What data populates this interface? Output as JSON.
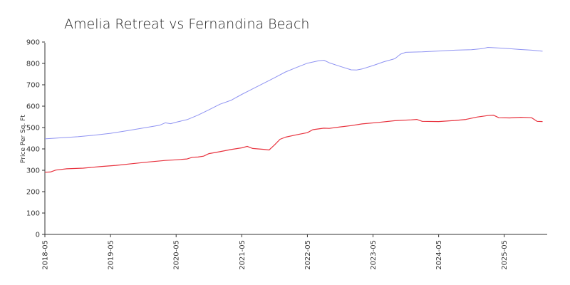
{
  "chart_data": {
    "type": "line",
    "title": "Amelia Retreat vs Fernandina Beach",
    "xlabel": "",
    "ylabel": "Price Per Sq. Ft",
    "ylim": [
      0,
      900
    ],
    "xlim": [
      "2018-05",
      "2025-12"
    ],
    "yticks": [
      "0",
      "100",
      "200",
      "300",
      "400",
      "500",
      "600",
      "700",
      "800",
      "900"
    ],
    "xticks": [
      "2018-05",
      "2019-05",
      "2020-05",
      "2021-05",
      "2022-05",
      "2023-05",
      "2024-05",
      "2025-05"
    ],
    "grid": false,
    "legend": "none",
    "series": [
      {
        "color": "#8f93f2",
        "points": [
          [
            "2018-05",
            447
          ],
          [
            "2018-08",
            452
          ],
          [
            "2018-11",
            457
          ],
          [
            "2019-02",
            464
          ],
          [
            "2019-05",
            473
          ],
          [
            "2019-08",
            485
          ],
          [
            "2019-11",
            498
          ],
          [
            "2020-02",
            511
          ],
          [
            "2020-03",
            522
          ],
          [
            "2020-04",
            518
          ],
          [
            "2020-05",
            525
          ],
          [
            "2020-07",
            537
          ],
          [
            "2020-09",
            558
          ],
          [
            "2020-11",
            583
          ],
          [
            "2021-01",
            609
          ],
          [
            "2021-03",
            627
          ],
          [
            "2021-05",
            655
          ],
          [
            "2021-08",
            694
          ],
          [
            "2021-11",
            733
          ],
          [
            "2022-01",
            760
          ],
          [
            "2022-03",
            781
          ],
          [
            "2022-05",
            801
          ],
          [
            "2022-07",
            812
          ],
          [
            "2022-08",
            815
          ],
          [
            "2022-09",
            803
          ],
          [
            "2022-11",
            786
          ],
          [
            "2023-01",
            770
          ],
          [
            "2023-02",
            769
          ],
          [
            "2023-03",
            774
          ],
          [
            "2023-05",
            790
          ],
          [
            "2023-07",
            808
          ],
          [
            "2023-09",
            822
          ],
          [
            "2023-10",
            843
          ],
          [
            "2023-11",
            852
          ],
          [
            "2024-02",
            854
          ],
          [
            "2024-05",
            858
          ],
          [
            "2024-08",
            862
          ],
          [
            "2024-11",
            864
          ],
          [
            "2025-01",
            869
          ],
          [
            "2025-02",
            875
          ],
          [
            "2025-05",
            871
          ],
          [
            "2025-08",
            865
          ],
          [
            "2025-10",
            862
          ],
          [
            "2025-12",
            857
          ]
        ]
      },
      {
        "color": "#e8333f",
        "points": [
          [
            "2018-05",
            291
          ],
          [
            "2018-06",
            292
          ],
          [
            "2018-07",
            301
          ],
          [
            "2018-09",
            307
          ],
          [
            "2018-12",
            310
          ],
          [
            "2019-03",
            317
          ],
          [
            "2019-06",
            323
          ],
          [
            "2019-09",
            331
          ],
          [
            "2019-12",
            339
          ],
          [
            "2020-03",
            346
          ],
          [
            "2020-05",
            349
          ],
          [
            "2020-07",
            353
          ],
          [
            "2020-08",
            361
          ],
          [
            "2020-09",
            362
          ],
          [
            "2020-10",
            366
          ],
          [
            "2020-11",
            378
          ],
          [
            "2021-01",
            387
          ],
          [
            "2021-03",
            397
          ],
          [
            "2021-05",
            405
          ],
          [
            "2021-06",
            412
          ],
          [
            "2021-07",
            402
          ],
          [
            "2021-09",
            398
          ],
          [
            "2021-10",
            395
          ],
          [
            "2021-11",
            419
          ],
          [
            "2021-12",
            445
          ],
          [
            "2022-01",
            455
          ],
          [
            "2022-03",
            466
          ],
          [
            "2022-05",
            476
          ],
          [
            "2022-06",
            490
          ],
          [
            "2022-08",
            497
          ],
          [
            "2022-09",
            496
          ],
          [
            "2022-11",
            503
          ],
          [
            "2023-01",
            509
          ],
          [
            "2023-03",
            517
          ],
          [
            "2023-06",
            524
          ],
          [
            "2023-09",
            532
          ],
          [
            "2023-12",
            536
          ],
          [
            "2024-01",
            538
          ],
          [
            "2024-02",
            529
          ],
          [
            "2024-05",
            528
          ],
          [
            "2024-08",
            533
          ],
          [
            "2024-10",
            538
          ],
          [
            "2024-12",
            549
          ],
          [
            "2025-02",
            556
          ],
          [
            "2025-03",
            558
          ],
          [
            "2025-04",
            546
          ],
          [
            "2025-06",
            545
          ],
          [
            "2025-08",
            548
          ],
          [
            "2025-10",
            546
          ],
          [
            "2025-11",
            529
          ],
          [
            "2025-12",
            528
          ]
        ]
      }
    ]
  }
}
